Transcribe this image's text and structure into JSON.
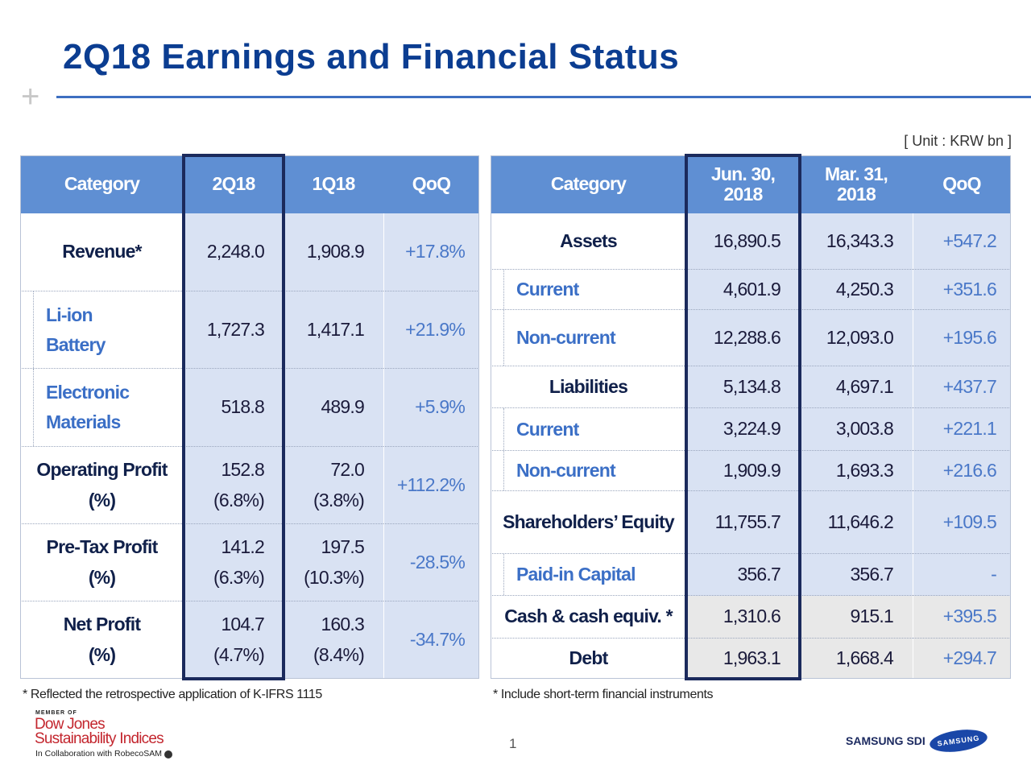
{
  "header": {
    "title": "2Q18 Earnings and Financial Status",
    "unit": "[ Unit : KRW bn ]"
  },
  "left_table": {
    "header": [
      "Category",
      "2Q18",
      "1Q18",
      "QoQ"
    ],
    "rows": [
      {
        "category": "Revenue*",
        "q2": "2,248.0",
        "q1": "1,908.9",
        "qoq": "+17.8%"
      },
      {
        "category": [
          "Li-ion",
          "Battery"
        ],
        "q2": "1,727.3",
        "q1": "1,417.1",
        "qoq": "+21.9%"
      },
      {
        "category": [
          "Electronic",
          "Materials"
        ],
        "q2": "518.8",
        "q1": "489.9",
        "qoq": "+5.9%"
      },
      {
        "category": [
          "Operating Profit",
          "(%)"
        ],
        "q2": [
          "152.8",
          "(6.8%)"
        ],
        "q1": [
          "72.0",
          "(3.8%)"
        ],
        "qoq": "+112.2%"
      },
      {
        "category": [
          "Pre-Tax Profit",
          "(%)"
        ],
        "q2": [
          "141.2",
          "(6.3%)"
        ],
        "q1": [
          "197.5",
          "(10.3%)"
        ],
        "qoq": "-28.5%"
      },
      {
        "category": [
          "Net Profit",
          "(%)"
        ],
        "q2": [
          "104.7",
          "(4.7%)"
        ],
        "q1": [
          "160.3",
          "(8.4%)"
        ],
        "qoq": "-34.7%"
      }
    ],
    "footnote": "* Reflected the retrospective application of K-IFRS 1115"
  },
  "right_table": {
    "header": [
      "Category",
      [
        "Jun. 30,",
        "2018"
      ],
      [
        "Mar. 31,",
        "2018"
      ],
      "QoQ"
    ],
    "rows": [
      {
        "category": "Assets",
        "jun": "16,890.5",
        "mar": "16,343.3",
        "qoq": "+547.2"
      },
      {
        "category": "Current",
        "jun": "4,601.9",
        "mar": "4,250.3",
        "qoq": "+351.6"
      },
      {
        "category": "Non-current",
        "jun": "12,288.6",
        "mar": "12,093.0",
        "qoq": "+195.6"
      },
      {
        "category": "Liabilities",
        "jun": "5,134.8",
        "mar": "4,697.1",
        "qoq": "+437.7"
      },
      {
        "category": "Current",
        "jun": "3,224.9",
        "mar": "3,003.8",
        "qoq": "+221.1"
      },
      {
        "category": "Non-current",
        "jun": "1,909.9",
        "mar": "1,693.3",
        "qoq": "+216.6"
      },
      {
        "category": "Shareholders’ Equity",
        "jun": "11,755.7",
        "mar": "11,646.2",
        "qoq": "+109.5"
      },
      {
        "category": "Paid-in Capital",
        "jun": "356.7",
        "mar": "356.7",
        "qoq": "-"
      },
      {
        "category": "Cash & cash equiv. *",
        "jun": "1,310.6",
        "mar": "915.1",
        "qoq": "+395.5"
      },
      {
        "category": "Debt",
        "jun": "1,963.1",
        "mar": "1,668.4",
        "qoq": "+294.7"
      }
    ],
    "footnote": "* Include short-term financial instruments"
  },
  "footer": {
    "page": "1",
    "djsi_member": "MEMBER OF",
    "djsi_name": "Dow Jones",
    "djsi_indices": "Sustainability Indices",
    "djsi_collab": "In Collaboration with RobecoSAM",
    "company": "SAMSUNG SDI",
    "brand": "SAMSUNG"
  }
}
